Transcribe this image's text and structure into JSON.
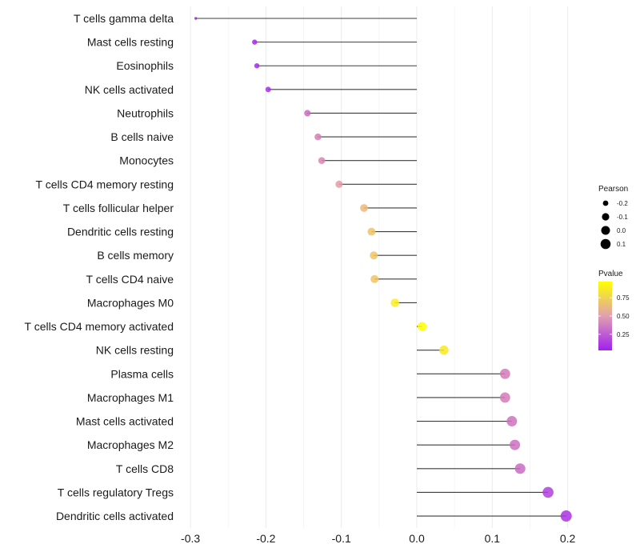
{
  "chart_data": {
    "type": "lollipop",
    "title": "",
    "xlabel": "",
    "ylabel": "",
    "xlim": [
      -0.31,
      0.21
    ],
    "xticks": [
      -0.3,
      -0.2,
      -0.1,
      0.0,
      0.1,
      0.2
    ],
    "xtick_labels": [
      "-0.3",
      "-0.2",
      "-0.1",
      "0.0",
      "0.1",
      "0.2"
    ],
    "grid": true,
    "categories": [
      "T cells gamma delta",
      "Mast cells resting",
      "Eosinophils",
      "NK cells activated",
      "Neutrophils",
      "B cells naive",
      "Monocytes",
      "T cells CD4 memory resting",
      "T cells follicular helper",
      "Dendritic cells resting",
      "B cells memory",
      "T cells CD4 naive",
      "Macrophages M0",
      "T cells CD4 memory activated",
      "NK cells resting",
      "Plasma cells",
      "Macrophages M1",
      "Mast cells activated",
      "Macrophages M2",
      "T cells CD8",
      "T cells regulatory  Tregs ",
      "Dendritic cells activated"
    ],
    "series": [
      {
        "name": "Pearson",
        "values": [
          -0.293,
          -0.215,
          -0.212,
          -0.197,
          -0.145,
          -0.131,
          -0.126,
          -0.103,
          -0.07,
          -0.06,
          -0.057,
          -0.056,
          -0.029,
          0.007,
          0.036,
          0.117,
          0.117,
          0.126,
          0.13,
          0.137,
          0.174,
          0.198
        ]
      },
      {
        "name": "Pvalue",
        "values": [
          0.03,
          0.06,
          0.07,
          0.09,
          0.3,
          0.38,
          0.4,
          0.48,
          0.62,
          0.67,
          0.68,
          0.68,
          0.88,
          0.97,
          0.86,
          0.36,
          0.36,
          0.33,
          0.32,
          0.3,
          0.14,
          0.1
        ]
      }
    ],
    "legend": {
      "placement": "right",
      "size_title": "Pearson",
      "size_breaks": [
        -0.2,
        -0.1,
        0.0,
        0.1
      ],
      "size_labels": [
        "-0.2",
        "-0.1",
        "0.0",
        "0.1"
      ],
      "color_title": "Pvalue",
      "color_breaks": [
        0.25,
        0.5,
        0.75
      ],
      "color_labels": [
        "0.25",
        "0.50",
        "0.75"
      ],
      "color_range": [
        0.03,
        0.97
      ],
      "color_low": "#a020f0",
      "color_mid": "#e8a0a0",
      "color_high": "#ffff00"
    }
  }
}
